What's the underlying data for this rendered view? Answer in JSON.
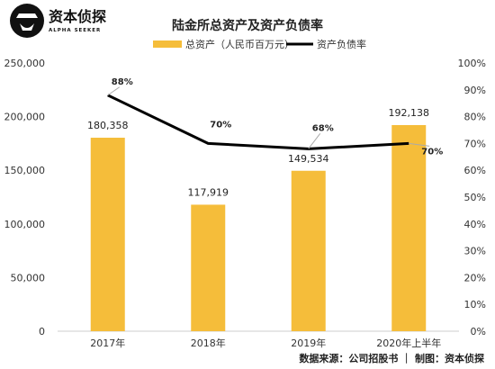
{
  "brand": {
    "name": "资本侦探",
    "tagline": "ALPHA SEEKER",
    "logo_mark": "spy-figure-icon"
  },
  "source_note": "数据来源：公司招股书 ｜ 制图：资本侦探",
  "chart_data": {
    "type": "bar",
    "title": "陆金所总资产及资产负债率",
    "categories": [
      "2017年",
      "2018年",
      "2019年",
      "2020年上半年"
    ],
    "series": [
      {
        "name": "总资产（人民币百万元）",
        "kind": "bar",
        "axis": "left",
        "color": "#F5BD3A",
        "values": [
          180358,
          117919,
          149534,
          192138
        ],
        "labels": [
          "180,358",
          "117,919",
          "149,534",
          "192,138"
        ]
      },
      {
        "name": "资产负债率",
        "kind": "line",
        "axis": "right",
        "color": "#000000",
        "values": [
          88,
          70,
          68,
          70
        ],
        "labels": [
          "88%",
          "70%",
          "68%",
          "70%"
        ]
      }
    ],
    "y_left": {
      "range": [
        0,
        250000
      ],
      "ticks": [
        0,
        50000,
        100000,
        150000,
        200000,
        250000
      ],
      "tick_labels": [
        "0",
        "50,000",
        "100,000",
        "150,000",
        "200,000",
        "250,000"
      ]
    },
    "y_right": {
      "range": [
        0,
        100
      ],
      "ticks": [
        0,
        10,
        20,
        30,
        40,
        50,
        60,
        70,
        80,
        90,
        100
      ],
      "tick_labels": [
        "0%",
        "10%",
        "20%",
        "30%",
        "40%",
        "50%",
        "60%",
        "70%",
        "80%",
        "90%",
        "100%"
      ]
    },
    "legend_position": "top-center",
    "grid": false
  }
}
